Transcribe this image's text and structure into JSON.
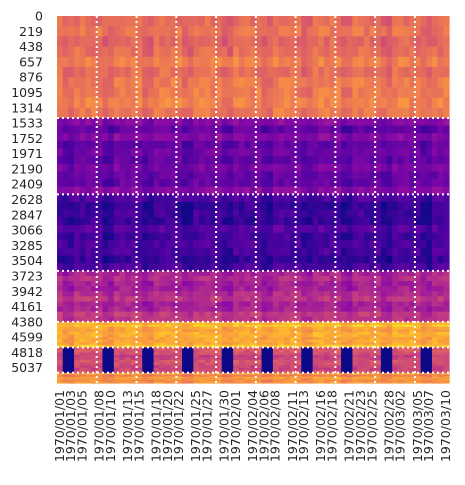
{
  "chart_data": {
    "type": "heatmap",
    "title": "",
    "xlabel": "",
    "ylabel": "",
    "colormap": "plasma",
    "colorbar": false,
    "x_tick_labels": [
      "1970/01/01",
      "1970/01/03",
      "1970/01/05",
      "1970/01/08",
      "1970/01/10",
      "1970/01/13",
      "1970/01/15",
      "1970/01/18",
      "1970/01/20",
      "1970/01/22",
      "1970/01/25",
      "1970/01/27",
      "1970/01/30",
      "1970/02/01",
      "1970/02/04",
      "1970/02/06",
      "1970/02/08",
      "1970/02/11",
      "1970/02/13",
      "1970/02/16",
      "1970/02/18",
      "1970/02/21",
      "1970/02/23",
      "1970/02/25",
      "1970/02/28",
      "1970/03/02",
      "1970/03/05",
      "1970/03/07",
      "1970/03/10"
    ],
    "y_tick_labels": [
      "0",
      "219",
      "438",
      "657",
      "876",
      "1095",
      "1314",
      "1533",
      "1752",
      "1971",
      "2190",
      "2409",
      "2628",
      "2847",
      "3066",
      "3285",
      "3504",
      "3723",
      "3942",
      "4161",
      "4380",
      "4599",
      "4818",
      "5037"
    ],
    "x_range": [
      "1970/01/01",
      "1970/03/10"
    ],
    "y_range": [
      0,
      5256
    ],
    "column_separators": [
      "1970/01/08",
      "1970/01/15",
      "1970/01/22",
      "1970/01/29",
      "1970/02/05",
      "1970/02/12",
      "1970/02/19",
      "1970/02/26",
      "1970/03/05"
    ],
    "row_separators": [
      1460,
      2555,
      3650,
      4380,
      4745,
      5110
    ],
    "separator_style": "white dotted",
    "row_bands": [
      {
        "rows": [
          0,
          1460
        ],
        "level": 0.66
      },
      {
        "rows": [
          1460,
          2555
        ],
        "level": 0.24
      },
      {
        "rows": [
          2555,
          3650
        ],
        "level": 0.13
      },
      {
        "rows": [
          3650,
          4380
        ],
        "level": 0.42
      },
      {
        "rows": [
          4380,
          4745
        ],
        "level": 0.84
      },
      {
        "rows": [
          4745,
          5110
        ],
        "level": 0.52,
        "period_end_days": 0.0
      },
      {
        "rows": [
          5110,
          5256
        ],
        "level": 0.74
      }
    ],
    "weekly_pattern": {
      "weekend_days_offset_from_monday_1970_01_05": [
        5,
        6
      ]
    }
  }
}
